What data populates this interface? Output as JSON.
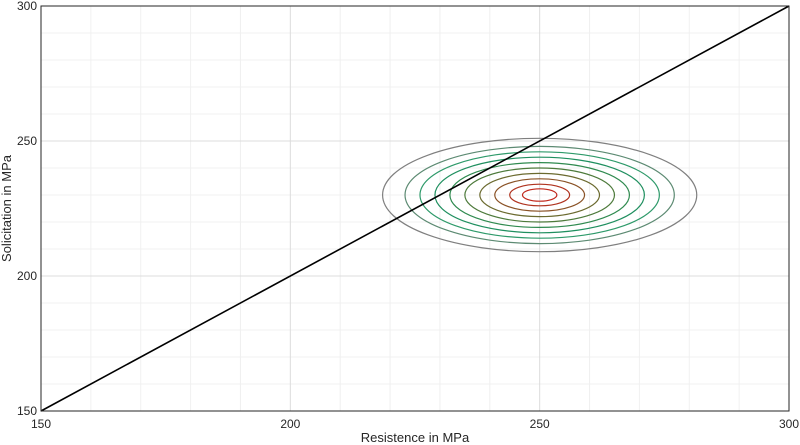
{
  "chart_data": {
    "type": "line",
    "title": "",
    "xlabel": "Resistence in MPa",
    "ylabel": "Solicitation in MPa",
    "xlim": [
      150,
      300
    ],
    "ylim": [
      150,
      300
    ],
    "xticks": [
      150,
      200,
      250,
      300
    ],
    "yticks": [
      150,
      200,
      250,
      300
    ],
    "minor_grid_step": 10,
    "grid": true,
    "series": [
      {
        "kind": "line",
        "color": "#000000",
        "x": [
          150,
          300
        ],
        "y": [
          150,
          300
        ]
      }
    ],
    "contours": {
      "center": [
        250,
        230
      ],
      "sigma": [
        15,
        10
      ],
      "levels": [
        {
          "k": 2.1,
          "color": "#7f7f7f"
        },
        {
          "k": 1.8,
          "color": "#5c8a72"
        },
        {
          "k": 1.6,
          "color": "#2e9a6a"
        },
        {
          "k": 1.4,
          "color": "#1f8f5f"
        },
        {
          "k": 1.2,
          "color": "#2f8a4f"
        },
        {
          "k": 1.0,
          "color": "#4d7a3b"
        },
        {
          "k": 0.8,
          "color": "#6b6a2f"
        },
        {
          "k": 0.6,
          "color": "#8a5226"
        },
        {
          "k": 0.4,
          "color": "#b0331f"
        },
        {
          "k": 0.23,
          "color": "#c0281c"
        }
      ]
    }
  }
}
